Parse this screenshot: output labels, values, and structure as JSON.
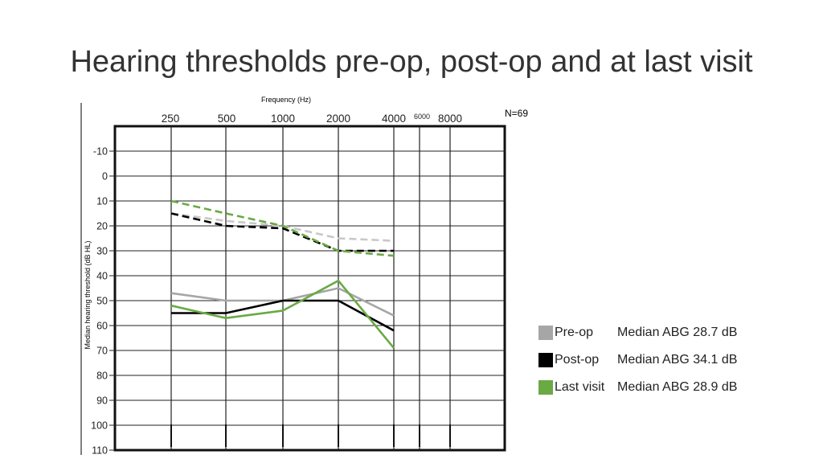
{
  "slide": {
    "title": "Hearing thresholds pre-op, post-op and at last visit",
    "n_label": "N=69"
  },
  "legend": [
    {
      "label": "Pre-op",
      "note": "Median ABG 28.7 dB",
      "color": "#a6a6a6"
    },
    {
      "label": "Post-op",
      "note": "Median ABG 34.1 dB",
      "color": "#000000"
    },
    {
      "label": "Last visit",
      "note": "Median ABG 28.9 dB",
      "color": "#6aaa45"
    }
  ],
  "chart_data": {
    "type": "line",
    "title": "",
    "xlabel": "Frequency (Hz)",
    "ylabel": "Median hearing threshold (dB HL)",
    "x": [
      "250",
      "500",
      "1000",
      "2000",
      "4000"
    ],
    "x_tick_labels": [
      "250",
      "500",
      "1000",
      "2000",
      "4000",
      "6000",
      "8000"
    ],
    "y_ticks": [
      -10,
      0,
      10,
      20,
      30,
      40,
      50,
      60,
      70,
      80,
      90,
      100,
      110
    ],
    "ylim": [
      -20,
      110
    ],
    "y_inverted": true,
    "grid": true,
    "series": [
      {
        "name": "Pre-op",
        "conduction": "bone",
        "style": "dashed",
        "color": "#c8c8c8",
        "values": [
          15,
          18,
          20,
          25,
          26
        ]
      },
      {
        "name": "Post-op",
        "conduction": "bone",
        "style": "dashed",
        "color": "#000000",
        "values": [
          15,
          20,
          21,
          30,
          30
        ]
      },
      {
        "name": "Last visit",
        "conduction": "bone",
        "style": "dashed",
        "color": "#6aaa45",
        "values": [
          10,
          15,
          20,
          30,
          32
        ]
      },
      {
        "name": "Pre-op",
        "conduction": "air",
        "style": "solid",
        "color": "#a6a6a6",
        "values": [
          47,
          50,
          50,
          45,
          56
        ]
      },
      {
        "name": "Post-op",
        "conduction": "air",
        "style": "solid",
        "color": "#000000",
        "values": [
          55,
          55,
          50,
          50,
          62
        ]
      },
      {
        "name": "Last visit",
        "conduction": "air",
        "style": "solid",
        "color": "#6aaa45",
        "values": [
          52,
          57,
          54,
          42,
          69
        ]
      }
    ]
  }
}
